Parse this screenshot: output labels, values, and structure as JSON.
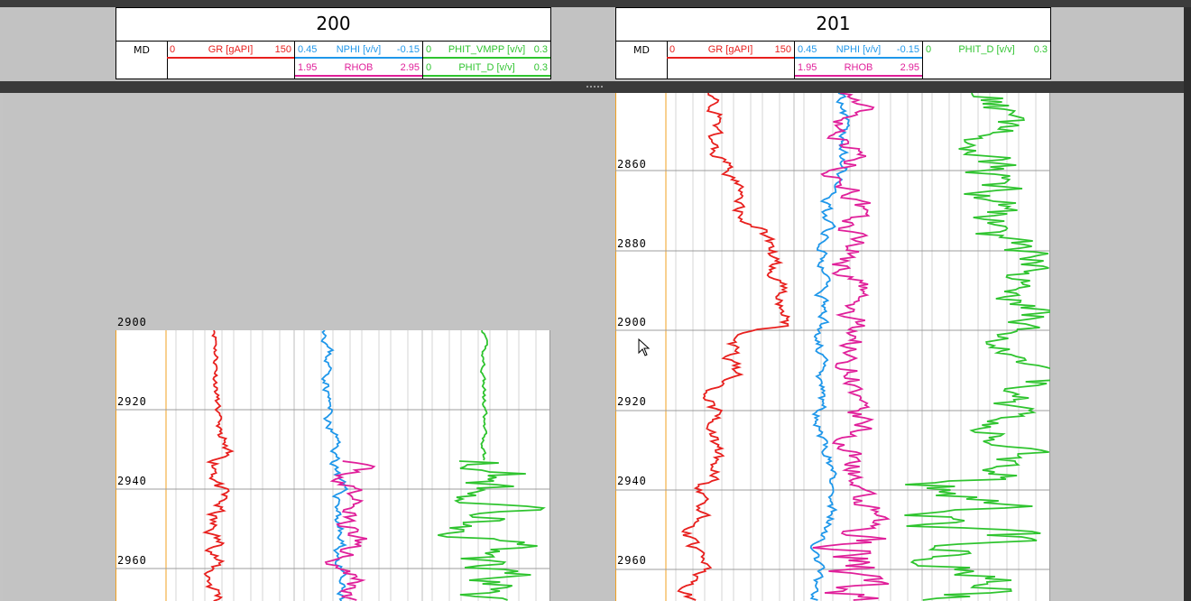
{
  "wells": [
    {
      "name": "200",
      "md_label": "MD",
      "tracks": {
        "gr": {
          "min": "0",
          "name": "GR [gAPI]",
          "max": "150"
        },
        "nphi": {
          "min": "0.45",
          "name": "NPHI [v/v]",
          "max": "-0.15"
        },
        "rhob": {
          "min": "1.95",
          "name": "RHOB",
          "max": "2.95"
        },
        "phit_vmpp": {
          "min": "0",
          "name": "PHIT_VMPP [v/v]",
          "max": "0.3"
        },
        "phit_d": {
          "min": "0",
          "name": "PHIT_D [v/v]",
          "max": "0.3"
        }
      },
      "depth_ticks": [
        "2900",
        "2920",
        "2940",
        "2960"
      ]
    },
    {
      "name": "201",
      "md_label": "MD",
      "tracks": {
        "gr": {
          "min": "0",
          "name": "GR [gAPI]",
          "max": "150"
        },
        "nphi": {
          "min": "0.45",
          "name": "NPHI [v/v]",
          "max": "-0.15"
        },
        "rhob": {
          "min": "1.95",
          "name": "RHOB",
          "max": "2.95"
        },
        "phit_d": {
          "min": "0",
          "name": "PHIT_D [v/v]",
          "max": "0.3"
        }
      },
      "depth_ticks": [
        "2860",
        "2880",
        "2900",
        "2920",
        "2940",
        "2960"
      ]
    }
  ],
  "colors": {
    "gr": "#e8201e",
    "nphi": "#1f97ea",
    "rhob": "#e0209a",
    "phit": "#2fc42f",
    "grid": "#9c9c9c",
    "depth_track_line": "#f0a020"
  }
}
